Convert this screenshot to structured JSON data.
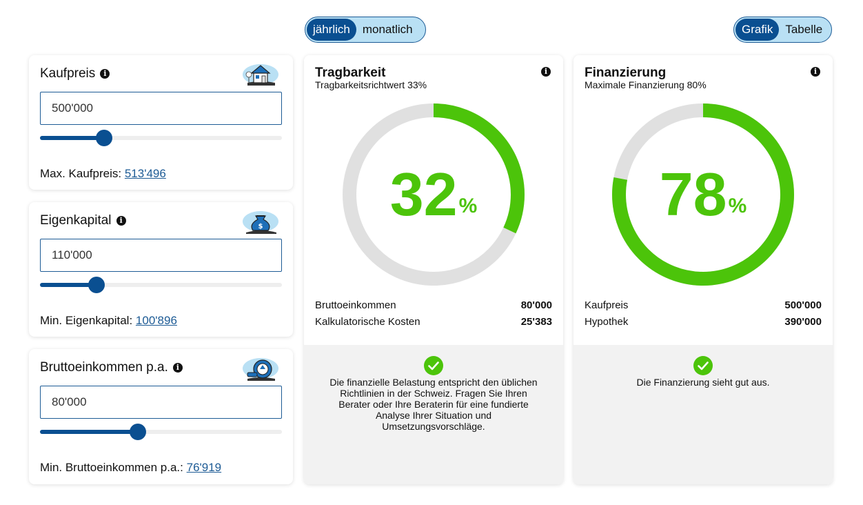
{
  "period_toggle": {
    "options": [
      "jährlich",
      "monatlich"
    ],
    "selected": "jährlich"
  },
  "view_toggle": {
    "options": [
      "Grafik",
      "Tabelle"
    ],
    "selected": "Grafik"
  },
  "inputs": [
    {
      "label": "Kaufpreis",
      "icon": "house-icon",
      "value": "500'000",
      "slider_fraction": 0.265,
      "hint_label": "Max. Kaufpreis:",
      "hint_value": "513'496"
    },
    {
      "label": "Eigenkapital",
      "icon": "money-bag-icon",
      "value": "110'000",
      "slider_fraction": 0.235,
      "hint_label": "Min. Eigenkapital:",
      "hint_value": "100'896"
    },
    {
      "label": "Bruttoeinkommen p.a.",
      "icon": "wallet-icon",
      "value": "80'000",
      "slider_fraction": 0.405,
      "hint_label": "Min. Bruttoeinkommen p.a.:",
      "hint_value": "76'919"
    }
  ],
  "tragbarkeit": {
    "title": "Tragbarkeit",
    "subtitle": "Tragbarkeitsrichtwert 33%",
    "percent": "32",
    "percent_sign": "%",
    "ring_fraction": 0.32,
    "rows": [
      {
        "label": "Bruttoeinkommen",
        "value": "80'000"
      },
      {
        "label": "Kalkulatorische Kosten",
        "value": "25'383"
      }
    ],
    "message": "Die finanzielle Belastung entspricht den üblichen Richtlinien in der Schweiz. Fragen Sie Ihren Berater oder Ihre Beraterin für eine fundierte Analyse Ihrer Situation und Umsetzungsvorschläge."
  },
  "finanzierung": {
    "title": "Finanzierung",
    "subtitle": "Maximale Finanzierung 80%",
    "percent": "78",
    "percent_sign": "%",
    "ring_fraction": 0.78,
    "rows": [
      {
        "label": "Kaufpreis",
        "value": "500'000"
      },
      {
        "label": "Hypothek",
        "value": "390'000"
      }
    ],
    "message": "Die Finanzierung sieht gut aus."
  },
  "colors": {
    "primary": "#0a4f91",
    "toggle_bg": "#b9e0f4",
    "success": "#4cc40a",
    "ring_track": "#e0e0e0"
  }
}
